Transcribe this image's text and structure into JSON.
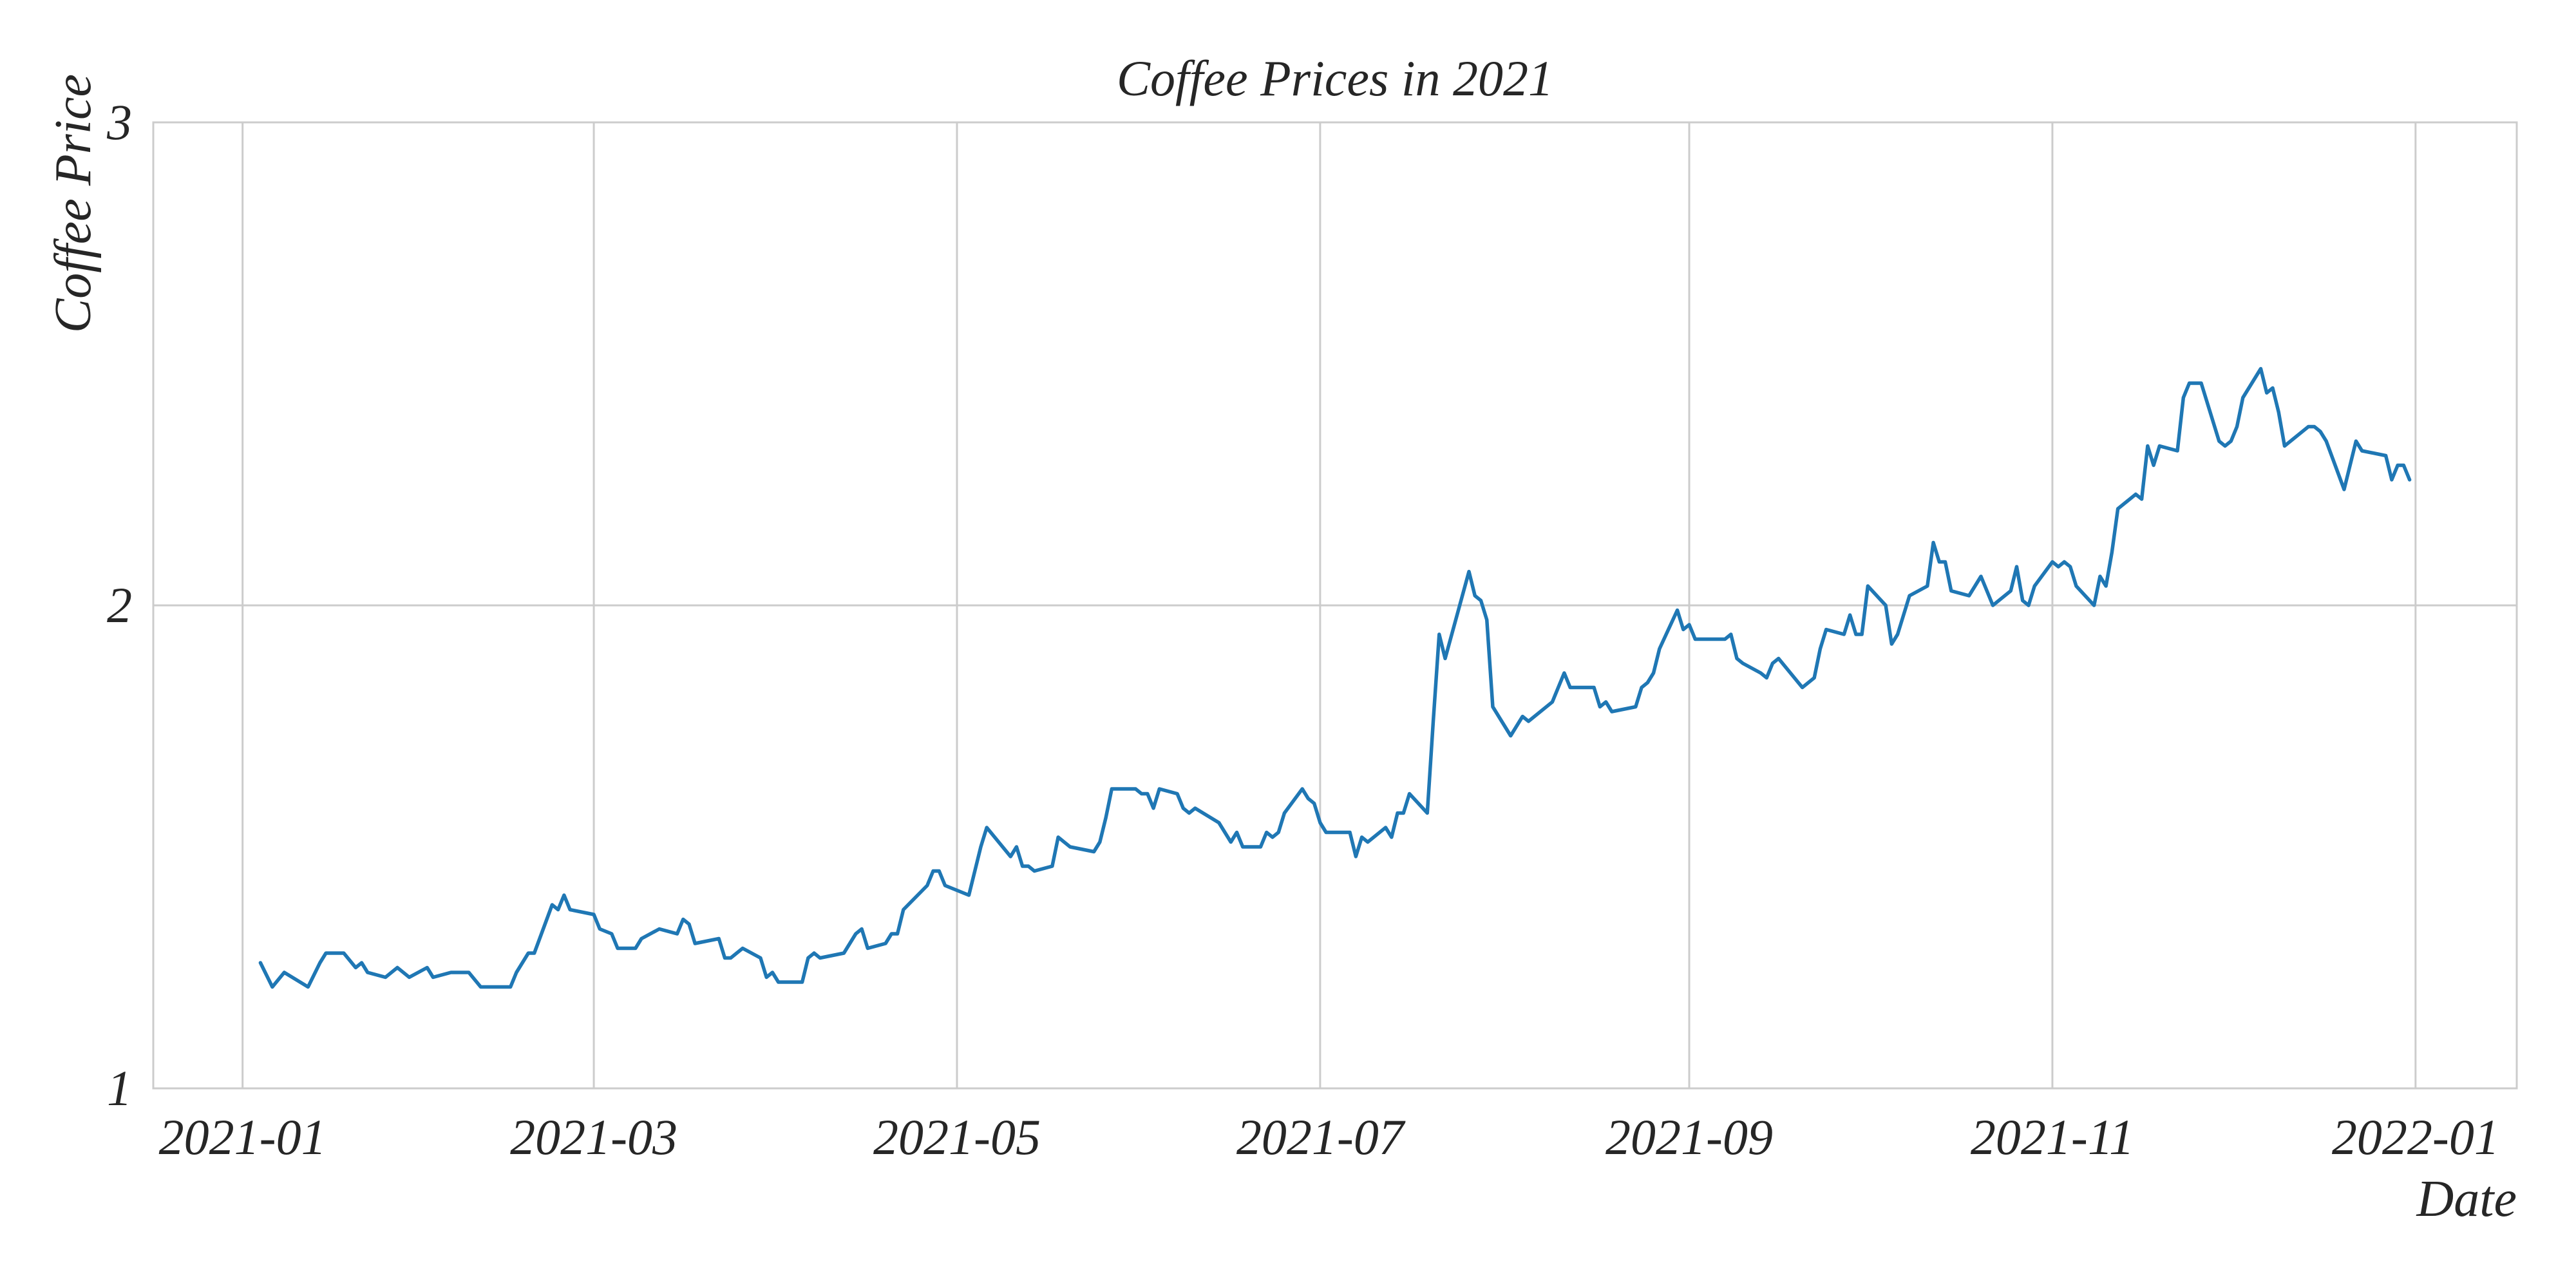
{
  "chart_data": {
    "type": "line",
    "title": "Coffee Prices in 2021",
    "x_label": "Date",
    "y_label": "Coffee Price",
    "color": "#1f77b4",
    "grid": true,
    "x": [
      "2021-01-04",
      "2021-01-06",
      "2021-01-08",
      "2021-01-12",
      "2021-01-14",
      "2021-01-15",
      "2021-01-18",
      "2021-01-20",
      "2021-01-21",
      "2021-01-22",
      "2021-01-25",
      "2021-01-27",
      "2021-01-29",
      "2021-02-01",
      "2021-02-02",
      "2021-02-05",
      "2021-02-08",
      "2021-02-10",
      "2021-02-15",
      "2021-02-16",
      "2021-02-18",
      "2021-02-19",
      "2021-02-22",
      "2021-02-23",
      "2021-02-24",
      "2021-02-25",
      "2021-03-01",
      "2021-03-02",
      "2021-03-04",
      "2021-03-05",
      "2021-03-08",
      "2021-03-09",
      "2021-03-12",
      "2021-03-15",
      "2021-03-16",
      "2021-03-17",
      "2021-03-18",
      "2021-03-22",
      "2021-03-23",
      "2021-03-24",
      "2021-03-26",
      "2021-03-29",
      "2021-03-30",
      "2021-03-31",
      "2021-04-01",
      "2021-04-05",
      "2021-04-06",
      "2021-04-07",
      "2021-04-08",
      "2021-04-12",
      "2021-04-14",
      "2021-04-15",
      "2021-04-16",
      "2021-04-19",
      "2021-04-20",
      "2021-04-21",
      "2021-04-22",
      "2021-04-26",
      "2021-04-27",
      "2021-04-28",
      "2021-04-29",
      "2021-05-03",
      "2021-05-05",
      "2021-05-06",
      "2021-05-10",
      "2021-05-11",
      "2021-05-12",
      "2021-05-13",
      "2021-05-14",
      "2021-05-17",
      "2021-05-18",
      "2021-05-19",
      "2021-05-20",
      "2021-05-24",
      "2021-05-25",
      "2021-05-26",
      "2021-05-27",
      "2021-05-31",
      "2021-06-01",
      "2021-06-02",
      "2021-06-03",
      "2021-06-04",
      "2021-06-07",
      "2021-06-08",
      "2021-06-09",
      "2021-06-10",
      "2021-06-14",
      "2021-06-16",
      "2021-06-17",
      "2021-06-18",
      "2021-06-21",
      "2021-06-22",
      "2021-06-23",
      "2021-06-24",
      "2021-06-25",
      "2021-06-28",
      "2021-06-29",
      "2021-06-30",
      "2021-07-01",
      "2021-07-02",
      "2021-07-06",
      "2021-07-07",
      "2021-07-08",
      "2021-07-09",
      "2021-07-12",
      "2021-07-13",
      "2021-07-14",
      "2021-07-15",
      "2021-07-16",
      "2021-07-19",
      "2021-07-20",
      "2021-07-21",
      "2021-07-22",
      "2021-07-26",
      "2021-07-27",
      "2021-07-28",
      "2021-07-29",
      "2021-07-30",
      "2021-08-02",
      "2021-08-03",
      "2021-08-04",
      "2021-08-05",
      "2021-08-09",
      "2021-08-10",
      "2021-08-11",
      "2021-08-12",
      "2021-08-16",
      "2021-08-17",
      "2021-08-18",
      "2021-08-19",
      "2021-08-23",
      "2021-08-24",
      "2021-08-25",
      "2021-08-26",
      "2021-08-27",
      "2021-08-30",
      "2021-08-31",
      "2021-09-01",
      "2021-09-02",
      "2021-09-07",
      "2021-09-08",
      "2021-09-09",
      "2021-09-10",
      "2021-09-13",
      "2021-09-14",
      "2021-09-15",
      "2021-09-16",
      "2021-09-20",
      "2021-09-21",
      "2021-09-22",
      "2021-09-23",
      "2021-09-24",
      "2021-09-27",
      "2021-09-28",
      "2021-09-29",
      "2021-09-30",
      "2021-10-01",
      "2021-10-04",
      "2021-10-05",
      "2021-10-06",
      "2021-10-07",
      "2021-10-08",
      "2021-10-11",
      "2021-10-12",
      "2021-10-13",
      "2021-10-14",
      "2021-10-15",
      "2021-10-18",
      "2021-10-19",
      "2021-10-20",
      "2021-10-21",
      "2021-10-22",
      "2021-10-25",
      "2021-10-26",
      "2021-10-27",
      "2021-10-28",
      "2021-10-29",
      "2021-11-01",
      "2021-11-02",
      "2021-11-03",
      "2021-11-04",
      "2021-11-05",
      "2021-11-08",
      "2021-11-09",
      "2021-11-10",
      "2021-11-11",
      "2021-11-12",
      "2021-11-15",
      "2021-11-16",
      "2021-11-17",
      "2021-11-18",
      "2021-11-19",
      "2021-11-22",
      "2021-11-23",
      "2021-11-24",
      "2021-11-26",
      "2021-11-29",
      "2021-11-30",
      "2021-12-01",
      "2021-12-02",
      "2021-12-03",
      "2021-12-06",
      "2021-12-07",
      "2021-12-08",
      "2021-12-09",
      "2021-12-10",
      "2021-12-13",
      "2021-12-14",
      "2021-12-15",
      "2021-12-16",
      "2021-12-17",
      "2021-12-20",
      "2021-12-21",
      "2021-12-22",
      "2021-12-23",
      "2021-12-27",
      "2021-12-28",
      "2021-12-29",
      "2021-12-30",
      "2021-12-31"
    ],
    "values": [
      1.26,
      1.21,
      1.24,
      1.21,
      1.26,
      1.28,
      1.28,
      1.25,
      1.26,
      1.24,
      1.23,
      1.25,
      1.23,
      1.25,
      1.23,
      1.24,
      1.24,
      1.21,
      1.21,
      1.24,
      1.28,
      1.28,
      1.38,
      1.37,
      1.4,
      1.37,
      1.36,
      1.33,
      1.32,
      1.29,
      1.29,
      1.31,
      1.33,
      1.32,
      1.35,
      1.34,
      1.3,
      1.31,
      1.27,
      1.27,
      1.29,
      1.27,
      1.23,
      1.24,
      1.22,
      1.22,
      1.27,
      1.28,
      1.27,
      1.28,
      1.32,
      1.33,
      1.29,
      1.3,
      1.32,
      1.32,
      1.37,
      1.42,
      1.45,
      1.45,
      1.42,
      1.4,
      1.5,
      1.54,
      1.48,
      1.5,
      1.46,
      1.46,
      1.45,
      1.46,
      1.52,
      1.51,
      1.5,
      1.49,
      1.51,
      1.56,
      1.62,
      1.62,
      1.61,
      1.61,
      1.58,
      1.62,
      1.61,
      1.58,
      1.57,
      1.58,
      1.55,
      1.51,
      1.53,
      1.5,
      1.5,
      1.53,
      1.52,
      1.53,
      1.57,
      1.62,
      1.6,
      1.59,
      1.55,
      1.53,
      1.53,
      1.48,
      1.52,
      1.51,
      1.54,
      1.52,
      1.57,
      1.57,
      1.61,
      1.57,
      1.76,
      1.94,
      1.89,
      2.07,
      2.02,
      2.01,
      1.97,
      1.79,
      1.73,
      1.75,
      1.77,
      1.76,
      1.8,
      1.83,
      1.86,
      1.83,
      1.83,
      1.79,
      1.8,
      1.78,
      1.79,
      1.83,
      1.84,
      1.86,
      1.91,
      1.99,
      1.95,
      1.96,
      1.93,
      1.93,
      1.94,
      1.89,
      1.88,
      1.86,
      1.85,
      1.88,
      1.89,
      1.83,
      1.84,
      1.85,
      1.91,
      1.95,
      1.94,
      1.98,
      1.94,
      1.94,
      2.04,
      2.0,
      1.92,
      1.94,
      1.98,
      2.02,
      2.04,
      2.13,
      2.09,
      2.09,
      2.03,
      2.02,
      2.04,
      2.06,
      2.03,
      2.0,
      2.03,
      2.08,
      2.01,
      2.0,
      2.04,
      2.09,
      2.08,
      2.09,
      2.08,
      2.04,
      2.0,
      2.06,
      2.04,
      2.11,
      2.2,
      2.23,
      2.22,
      2.33,
      2.29,
      2.33,
      2.32,
      2.43,
      2.46,
      2.46,
      2.34,
      2.33,
      2.34,
      2.37,
      2.43,
      2.49,
      2.44,
      2.45,
      2.4,
      2.33,
      2.36,
      2.37,
      2.37,
      2.36,
      2.34,
      2.24,
      2.29,
      2.34,
      2.32,
      2.31,
      2.26,
      2.29,
      2.29,
      2.26
    ],
    "xlim": [
      "2020-12-17",
      "2022-01-18"
    ],
    "xticks": [
      {
        "value": "2021-01-01",
        "label": "2021-01"
      },
      {
        "value": "2021-03-01",
        "label": "2021-03"
      },
      {
        "value": "2021-05-01",
        "label": "2021-05"
      },
      {
        "value": "2021-07-01",
        "label": "2021-07"
      },
      {
        "value": "2021-09-01",
        "label": "2021-09"
      },
      {
        "value": "2021-11-01",
        "label": "2021-11"
      },
      {
        "value": "2022-01-01",
        "label": "2022-01"
      }
    ],
    "ylim": [
      1,
      3
    ],
    "yticks": [
      1,
      2,
      3
    ]
  }
}
